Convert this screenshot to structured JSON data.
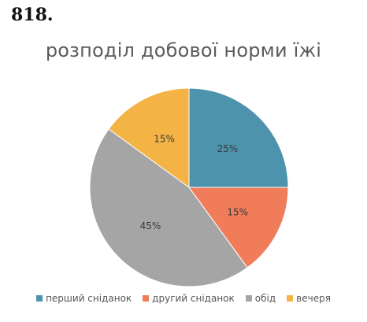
{
  "problem_number": "818.",
  "chart_data": {
    "type": "pie",
    "title": "розподіл добової норми їжі",
    "categories": [
      "перший сніданок",
      "другий сніданок",
      "обід",
      "вечеря"
    ],
    "values": [
      25,
      15,
      45,
      15
    ],
    "data_labels": [
      "25%",
      "15%",
      "45%",
      "15%"
    ],
    "colors": [
      "#4d93ad",
      "#f07c59",
      "#a5a5a5",
      "#f4b345"
    ],
    "legend_position": "bottom"
  }
}
